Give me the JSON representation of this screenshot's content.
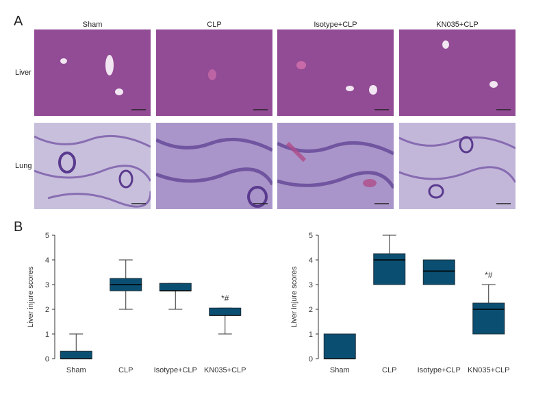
{
  "figure": {
    "panel_a_label": "A",
    "panel_b_label": "B",
    "columns": [
      "Sham",
      "CLP",
      "Isotype+CLP",
      "KN035+CLP"
    ],
    "rows": [
      "Liver",
      "Lung"
    ]
  },
  "colors": {
    "box_fill": "#0a4f72",
    "liver_bg": "#9a4f9a",
    "lung_bg": "#c7bfdc",
    "lung_tissue": "#6d4aa0"
  },
  "chart_data": [
    {
      "type": "box",
      "title": "",
      "xlabel": "",
      "ylabel": "Liver injure scores",
      "ylim": [
        0,
        5
      ],
      "yticks": [
        0,
        1,
        2,
        3,
        4,
        5
      ],
      "categories": [
        "Sham",
        "CLP",
        "Isotype+CLP",
        "KN035+CLP"
      ],
      "boxes": [
        {
          "min": 0,
          "q1": 0,
          "median": 0,
          "q3": 0.3,
          "max": 1.0
        },
        {
          "min": 2.0,
          "q1": 2.75,
          "median": 3.0,
          "q3": 3.25,
          "max": 4.0
        },
        {
          "min": 2.0,
          "q1": 2.75,
          "median": 2.75,
          "q3": 3.05,
          "max": 3.05
        },
        {
          "min": 1.0,
          "q1": 1.75,
          "median": 1.75,
          "q3": 2.05,
          "max": 2.05
        }
      ],
      "annotations": [
        {
          "category": "KN035+CLP",
          "text": "*#"
        }
      ]
    },
    {
      "type": "box",
      "title": "",
      "xlabel": "",
      "ylabel": "Liver injure scores",
      "ylim": [
        0,
        5
      ],
      "yticks": [
        0,
        1,
        2,
        3,
        4,
        5
      ],
      "categories": [
        "Sham",
        "CLP",
        "Isotype+CLP",
        "KN035+CLP"
      ],
      "boxes": [
        {
          "min": 0,
          "q1": 0,
          "median": 0,
          "q3": 1.0,
          "max": 1.0
        },
        {
          "min": 3.0,
          "q1": 3.0,
          "median": 4.0,
          "q3": 4.25,
          "max": 5.0
        },
        {
          "min": 3.0,
          "q1": 3.0,
          "median": 3.55,
          "q3": 4.0,
          "max": 4.0
        },
        {
          "min": 1.0,
          "q1": 1.0,
          "median": 2.0,
          "q3": 2.25,
          "max": 3.0
        }
      ],
      "annotations": [
        {
          "category": "KN035+CLP",
          "text": "*#"
        }
      ]
    }
  ]
}
